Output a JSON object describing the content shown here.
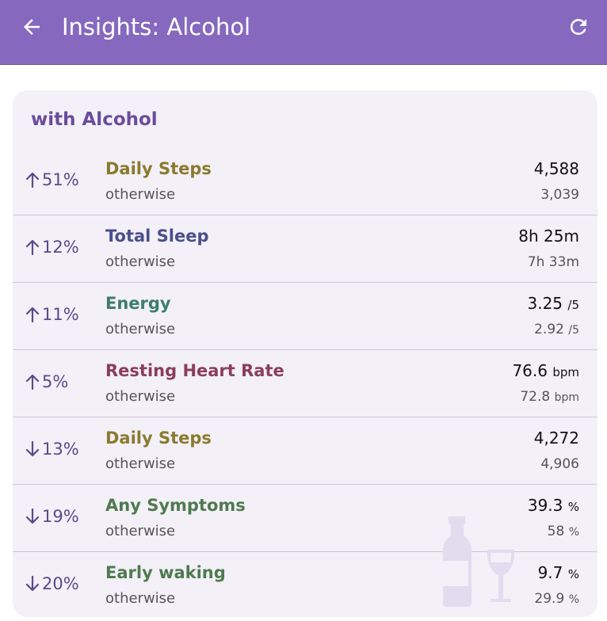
{
  "header": {
    "title": "Insights: Alcohol",
    "back_icon": "arrow-left-icon",
    "refresh_icon": "refresh-icon",
    "background_color": "#8669bf"
  },
  "card": {
    "title": "with Alcohol",
    "otherwise_label": "otherwise",
    "rows": [
      {
        "direction": "up",
        "change": "51%",
        "metric": "Daily Steps",
        "metric_color": "#8a7a2e",
        "value": "4,588",
        "unit": "",
        "other_value": "3,039",
        "other_unit": ""
      },
      {
        "direction": "up",
        "change": "12%",
        "metric": "Total Sleep",
        "metric_color": "#4a4f8c",
        "value": "8h 25m",
        "unit": "",
        "other_value": "7h 33m",
        "other_unit": ""
      },
      {
        "direction": "up",
        "change": "11%",
        "metric": "Energy",
        "metric_color": "#3d7d6b",
        "value": "3.25",
        "unit": "/5",
        "other_value": "2.92",
        "other_unit": "/5"
      },
      {
        "direction": "up",
        "change": "5%",
        "metric": "Resting Heart Rate",
        "metric_color": "#8c3d5c",
        "value": "76.6",
        "unit": "bpm",
        "other_value": "72.8",
        "other_unit": "bpm"
      },
      {
        "direction": "down",
        "change": "13%",
        "metric": "Daily Steps",
        "metric_color": "#8a7a2e",
        "value": "4,272",
        "unit": "",
        "other_value": "4,906",
        "other_unit": ""
      },
      {
        "direction": "down",
        "change": "19%",
        "metric": "Any Symptoms",
        "metric_color": "#4f7a4f",
        "value": "39.3",
        "unit": "%",
        "other_value": "58",
        "other_unit": "%"
      },
      {
        "direction": "down",
        "change": "20%",
        "metric": "Early waking",
        "metric_color": "#4f7a4f",
        "value": "9.7",
        "unit": "%",
        "other_value": "29.9",
        "other_unit": "%"
      }
    ],
    "watermark_icon": "alcohol-bottle-glass-icon"
  }
}
